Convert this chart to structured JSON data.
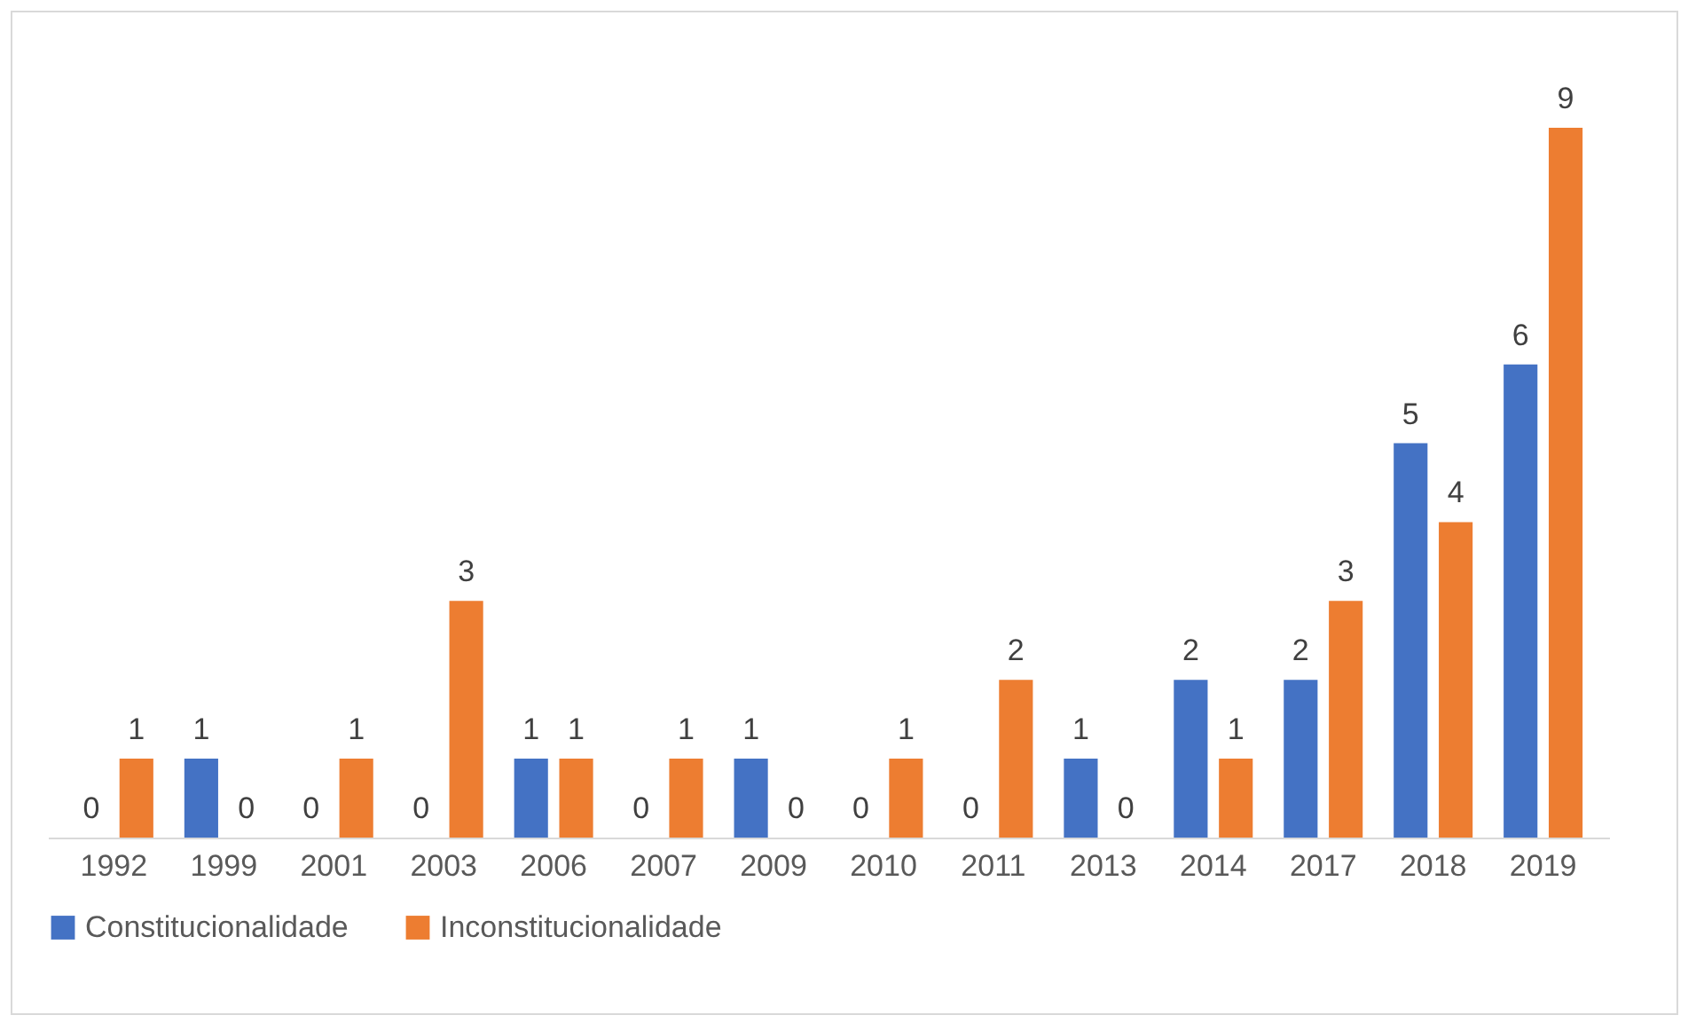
{
  "chart_data": {
    "type": "bar",
    "categories": [
      "1992",
      "1999",
      "2001",
      "2003",
      "2006",
      "2007",
      "2009",
      "2010",
      "2011",
      "2013",
      "2014",
      "2017",
      "2018",
      "2019"
    ],
    "series": [
      {
        "name": "Constitucionalidade",
        "color": "#4472c4",
        "values": [
          0,
          1,
          0,
          0,
          1,
          0,
          1,
          0,
          0,
          1,
          2,
          2,
          5,
          6
        ]
      },
      {
        "name": "Inconstitucionalidade",
        "color": "#ed7d31",
        "values": [
          1,
          0,
          1,
          3,
          1,
          1,
          0,
          1,
          2,
          0,
          1,
          3,
          4,
          9
        ]
      }
    ],
    "data_labels": true,
    "legend": "bottom",
    "grid": false
  }
}
